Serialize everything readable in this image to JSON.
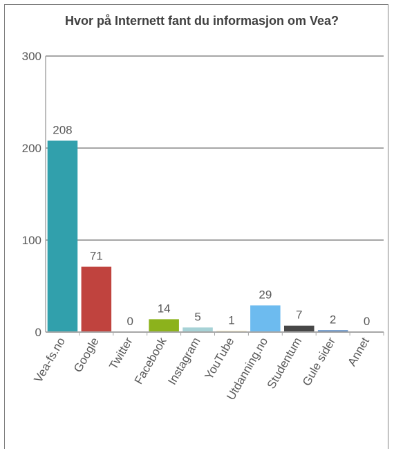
{
  "chart_data": {
    "type": "bar",
    "title": "Hvor på Internett fant du informasjon om Vea?",
    "xlabel": "",
    "ylabel": "",
    "categories": [
      "Vea-fs.no",
      "Google",
      "Twitter",
      "Facebook",
      "Instagram",
      "YouTube",
      "Utdanning.no",
      "Studentum",
      "Gule sider",
      "Annet"
    ],
    "values": [
      208,
      71,
      0,
      14,
      5,
      1,
      29,
      7,
      2,
      0
    ],
    "colors": [
      "#31a0ac",
      "#c0433e",
      "#8064a2",
      "#8cb21c",
      "#a6d2d6",
      "#e8c34a",
      "#6dbbef",
      "#474747",
      "#4f81bd",
      "#ee8a2f"
    ],
    "ylim": [
      0,
      300
    ],
    "yticks": [
      0,
      100,
      200,
      300
    ],
    "grid": true,
    "legend": "none"
  }
}
